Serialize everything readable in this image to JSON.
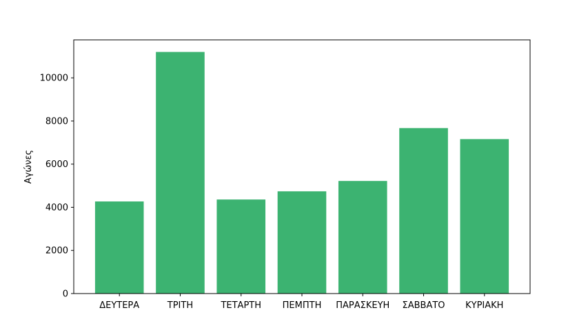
{
  "chart_data": {
    "type": "bar",
    "title": "",
    "xlabel": "",
    "ylabel": "Αγώνες",
    "categories": [
      "ΔΕΥΤΕΡΑ",
      "ΤΡΙΤΗ",
      "ΤΕΤΑΡΤΗ",
      "ΠΕΜΠΤΗ",
      "ΠΑΡΑΣΚΕΥΗ",
      "ΣΑΒΒΑΤΟ",
      "ΚΥΡΙΑΚΗ"
    ],
    "values": [
      4270,
      11200,
      4360,
      4740,
      5220,
      7670,
      7160
    ],
    "ylim": [
      0,
      11760
    ],
    "yticks": [
      0,
      2000,
      4000,
      6000,
      8000,
      10000
    ],
    "bar_color": "#3cb371",
    "grid": false,
    "legend": "none"
  }
}
